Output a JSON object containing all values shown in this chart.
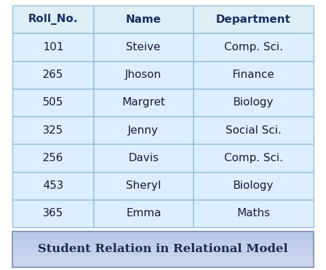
{
  "headers": [
    "Roll_No.",
    "Name",
    "Department"
  ],
  "rows": [
    [
      "101",
      "Steive",
      "Comp. Sci."
    ],
    [
      "265",
      "Jhoson",
      "Finance"
    ],
    [
      "505",
      "Margret",
      "Biology"
    ],
    [
      "325",
      "Jenny",
      "Social Sci."
    ],
    [
      "256",
      "Davis",
      "Comp. Sci."
    ],
    [
      "453",
      "Sheryl",
      "Biology"
    ],
    [
      "365",
      "Emma",
      "Maths"
    ]
  ],
  "header_bg": "#ddeef7",
  "row_bg": "#ddeeff",
  "border_color": "#90bcd8",
  "header_text_color": "#1a3060",
  "row_text_color": "#1a1a3a",
  "caption": "Student Relation in Relational Model",
  "caption_bg_top": "#d0d8f0",
  "caption_bg_bot": "#b8c8e8",
  "caption_border": "#8899bb",
  "caption_text_color": "#1a2a50",
  "fig_bg": "#ffffff",
  "header_fontsize": 11.5,
  "row_fontsize": 11.5,
  "caption_fontsize": 12.5,
  "col_props": [
    0.27,
    0.33,
    0.4
  ]
}
